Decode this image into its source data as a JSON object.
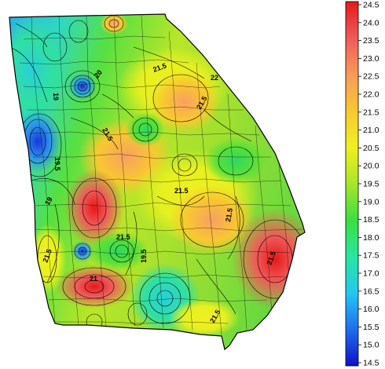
{
  "legend": {
    "ticks": [
      "24.5",
      "24.0",
      "23.5",
      "23.0",
      "22.5",
      "22.0",
      "21.5",
      "21.0",
      "20.5",
      "20.0",
      "19.5",
      "19.0",
      "18.5",
      "18.0",
      "17.5",
      "17.0",
      "16.5",
      "16.0",
      "15.5",
      "15.0",
      "14.5"
    ],
    "min": 14.5,
    "max": 24.5,
    "colors": [
      "#1010c8",
      "#1e6ef0",
      "#22c8f0",
      "#28e6a0",
      "#38e040",
      "#a8e628",
      "#f0f020",
      "#f8c830",
      "#f89a58",
      "#f05a5a",
      "#e81818"
    ]
  },
  "contour_labels": [
    "21.5",
    "19",
    "20",
    "21.5",
    "21.5",
    "19.5",
    "19",
    "21.5",
    "21.5",
    "21.5",
    "21",
    "19.5",
    "21.5",
    "21.5",
    "21.5",
    "22"
  ],
  "colors": {
    "state_border": "#000000",
    "county_line": "#000000",
    "background": "#ffffff"
  }
}
